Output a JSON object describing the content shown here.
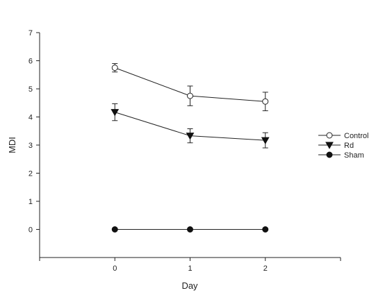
{
  "chart_data": {
    "type": "line",
    "title": "",
    "xlabel": "Day",
    "ylabel": "MDI",
    "x": [
      0,
      1,
      2
    ],
    "xlim": [
      -1,
      3
    ],
    "ylim": [
      -1,
      7
    ],
    "xticks": [
      0,
      1,
      2
    ],
    "yticks": [
      0,
      1,
      2,
      3,
      4,
      5,
      6,
      7
    ],
    "grid": false,
    "legend_position": "right",
    "series": [
      {
        "name": "Control",
        "marker": "open-circle",
        "values": [
          5.75,
          4.75,
          4.55
        ],
        "error": [
          0.15,
          0.35,
          0.33
        ]
      },
      {
        "name": "Rd",
        "marker": "filled-triangle-down",
        "values": [
          4.17,
          3.33,
          3.17
        ],
        "error": [
          0.3,
          0.25,
          0.27
        ]
      },
      {
        "name": "Sham",
        "marker": "filled-circle",
        "values": [
          0,
          0,
          0
        ],
        "error": [
          0,
          0,
          0
        ]
      }
    ]
  }
}
